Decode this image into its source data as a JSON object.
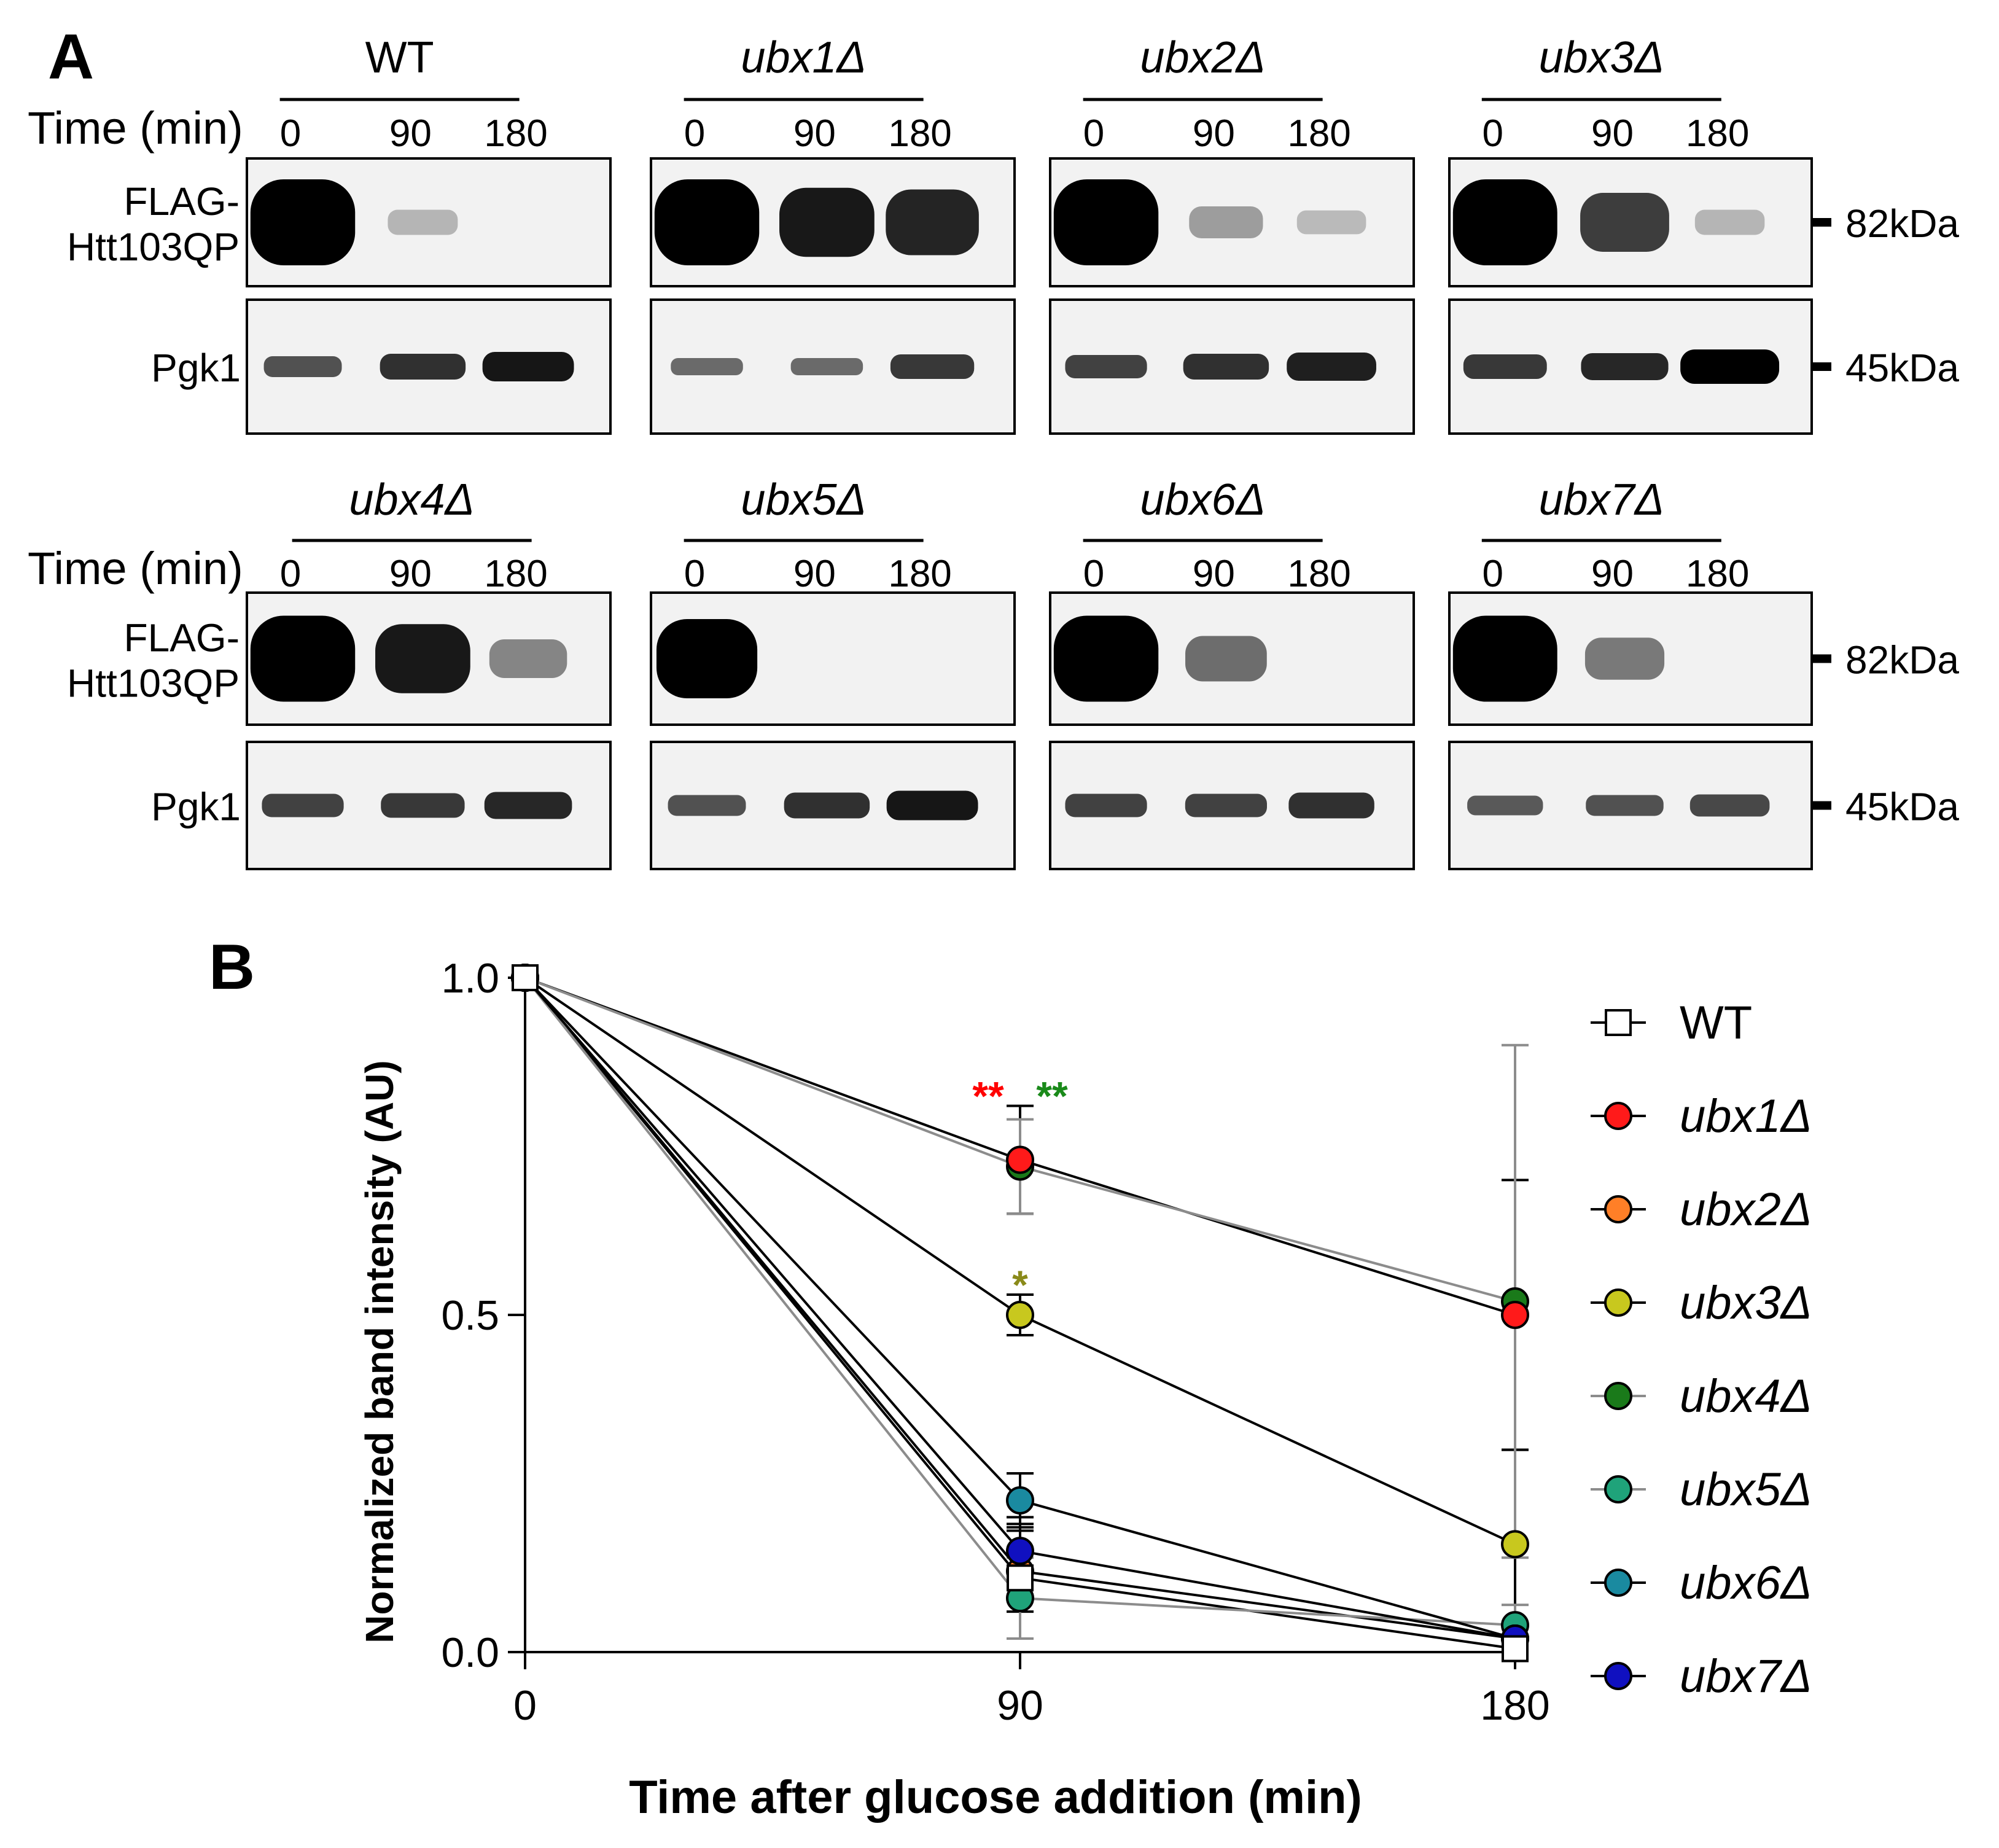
{
  "panel_a": {
    "label": "A",
    "time_label": "Time (min)",
    "time_points": [
      "0",
      "90",
      "180"
    ],
    "flag_label_line1": "FLAG-",
    "flag_label_line2": "Htt103QP",
    "pgk_label": "Pgk1",
    "marker_82": "82kDa",
    "marker_45": "45kDa",
    "strains": [
      "WT",
      "ubx1Δ",
      "ubx2Δ",
      "ubx3Δ",
      "ubx4Δ",
      "ubx5Δ",
      "ubx6Δ",
      "ubx7Δ"
    ],
    "strain_italic": [
      false,
      true,
      true,
      true,
      true,
      true,
      true,
      true
    ],
    "flag_band_level": [
      [
        1.0,
        0.1,
        0.0
      ],
      [
        1.0,
        0.75,
        0.7
      ],
      [
        1.0,
        0.2,
        0.08
      ],
      [
        1.0,
        0.6,
        0.1
      ],
      [
        1.0,
        0.75,
        0.3
      ],
      [
        0.9,
        0.0,
        0.0
      ],
      [
        1.0,
        0.4,
        0.0
      ],
      [
        1.0,
        0.35,
        0.0
      ]
    ],
    "pgk_band_level": [
      [
        0.45,
        0.65,
        0.8
      ],
      [
        0.3,
        0.3,
        0.6
      ],
      [
        0.55,
        0.65,
        0.75
      ],
      [
        0.6,
        0.7,
        1.0
      ],
      [
        0.55,
        0.6,
        0.7
      ],
      [
        0.45,
        0.65,
        0.8
      ],
      [
        0.55,
        0.55,
        0.65
      ],
      [
        0.4,
        0.45,
        0.5
      ]
    ]
  },
  "chart_data": {
    "type": "line",
    "panel_label": "B",
    "x": [
      0,
      90,
      180
    ],
    "xlabel": "Time after glucose addition (min)",
    "ylabel": "Normalized band intensity (AU)",
    "xlim": [
      0,
      180
    ],
    "ylim": [
      0,
      1.0
    ],
    "xticks": [
      "0",
      "90",
      "180"
    ],
    "yticks": [
      "0.0",
      "0.5",
      "1.0"
    ],
    "legend_position": "right",
    "series": [
      {
        "name": "WT",
        "values": [
          1.0,
          0.11,
          0.005
        ],
        "err": [
          0,
          0.09,
          0
        ],
        "color": "#ffffff",
        "marker": "square",
        "line_color": "#000000"
      },
      {
        "name": "ubx1Δ",
        "values": [
          1.0,
          0.73,
          0.5
        ],
        "err": [
          0,
          0.08,
          0.2
        ],
        "color": "#ff1a1a",
        "marker": "circle",
        "line_color": "#000000"
      },
      {
        "name": "ubx2Δ",
        "values": [
          1.0,
          0.12,
          0.02
        ],
        "err": [
          0,
          0.06,
          0.02
        ],
        "color": "#ff7f27",
        "marker": "circle",
        "line_color": "#000000"
      },
      {
        "name": "ubx3Δ",
        "values": [
          1.0,
          0.5,
          0.16
        ],
        "err": [
          0,
          0.03,
          0.14
        ],
        "color": "#c8c81e",
        "marker": "circle",
        "line_color": "#000000"
      },
      {
        "name": "ubx4Δ",
        "values": [
          1.0,
          0.72,
          0.52
        ],
        "err": [
          0,
          0.07,
          0.38
        ],
        "color": "#1a7a1a",
        "marker": "circle",
        "line_color": "#8c8c8c"
      },
      {
        "name": "ubx5Δ",
        "values": [
          1.0,
          0.08,
          0.04
        ],
        "err": [
          0,
          0.06,
          0.03
        ],
        "color": "#1fa37a",
        "marker": "circle",
        "line_color": "#8c8c8c"
      },
      {
        "name": "ubx6Δ",
        "values": [
          1.0,
          0.225,
          0.02
        ],
        "err": [
          0,
          0.04,
          0.02
        ],
        "color": "#1a8aa0",
        "marker": "circle",
        "line_color": "#000000"
      },
      {
        "name": "ubx7Δ",
        "values": [
          1.0,
          0.15,
          0.02
        ],
        "err": [
          0,
          0.04,
          0.02
        ],
        "color": "#1010c0",
        "marker": "circle",
        "line_color": "#000000"
      }
    ],
    "annotations": [
      {
        "text": "**",
        "x": 90,
        "y": 0.84,
        "color": "#ff0000",
        "side": "left"
      },
      {
        "text": "**",
        "x": 90,
        "y": 0.84,
        "color": "#1a8a1a",
        "side": "right"
      },
      {
        "text": "*",
        "x": 90,
        "y": 0.56,
        "color": "#8a8a1a",
        "side": "center"
      }
    ]
  }
}
